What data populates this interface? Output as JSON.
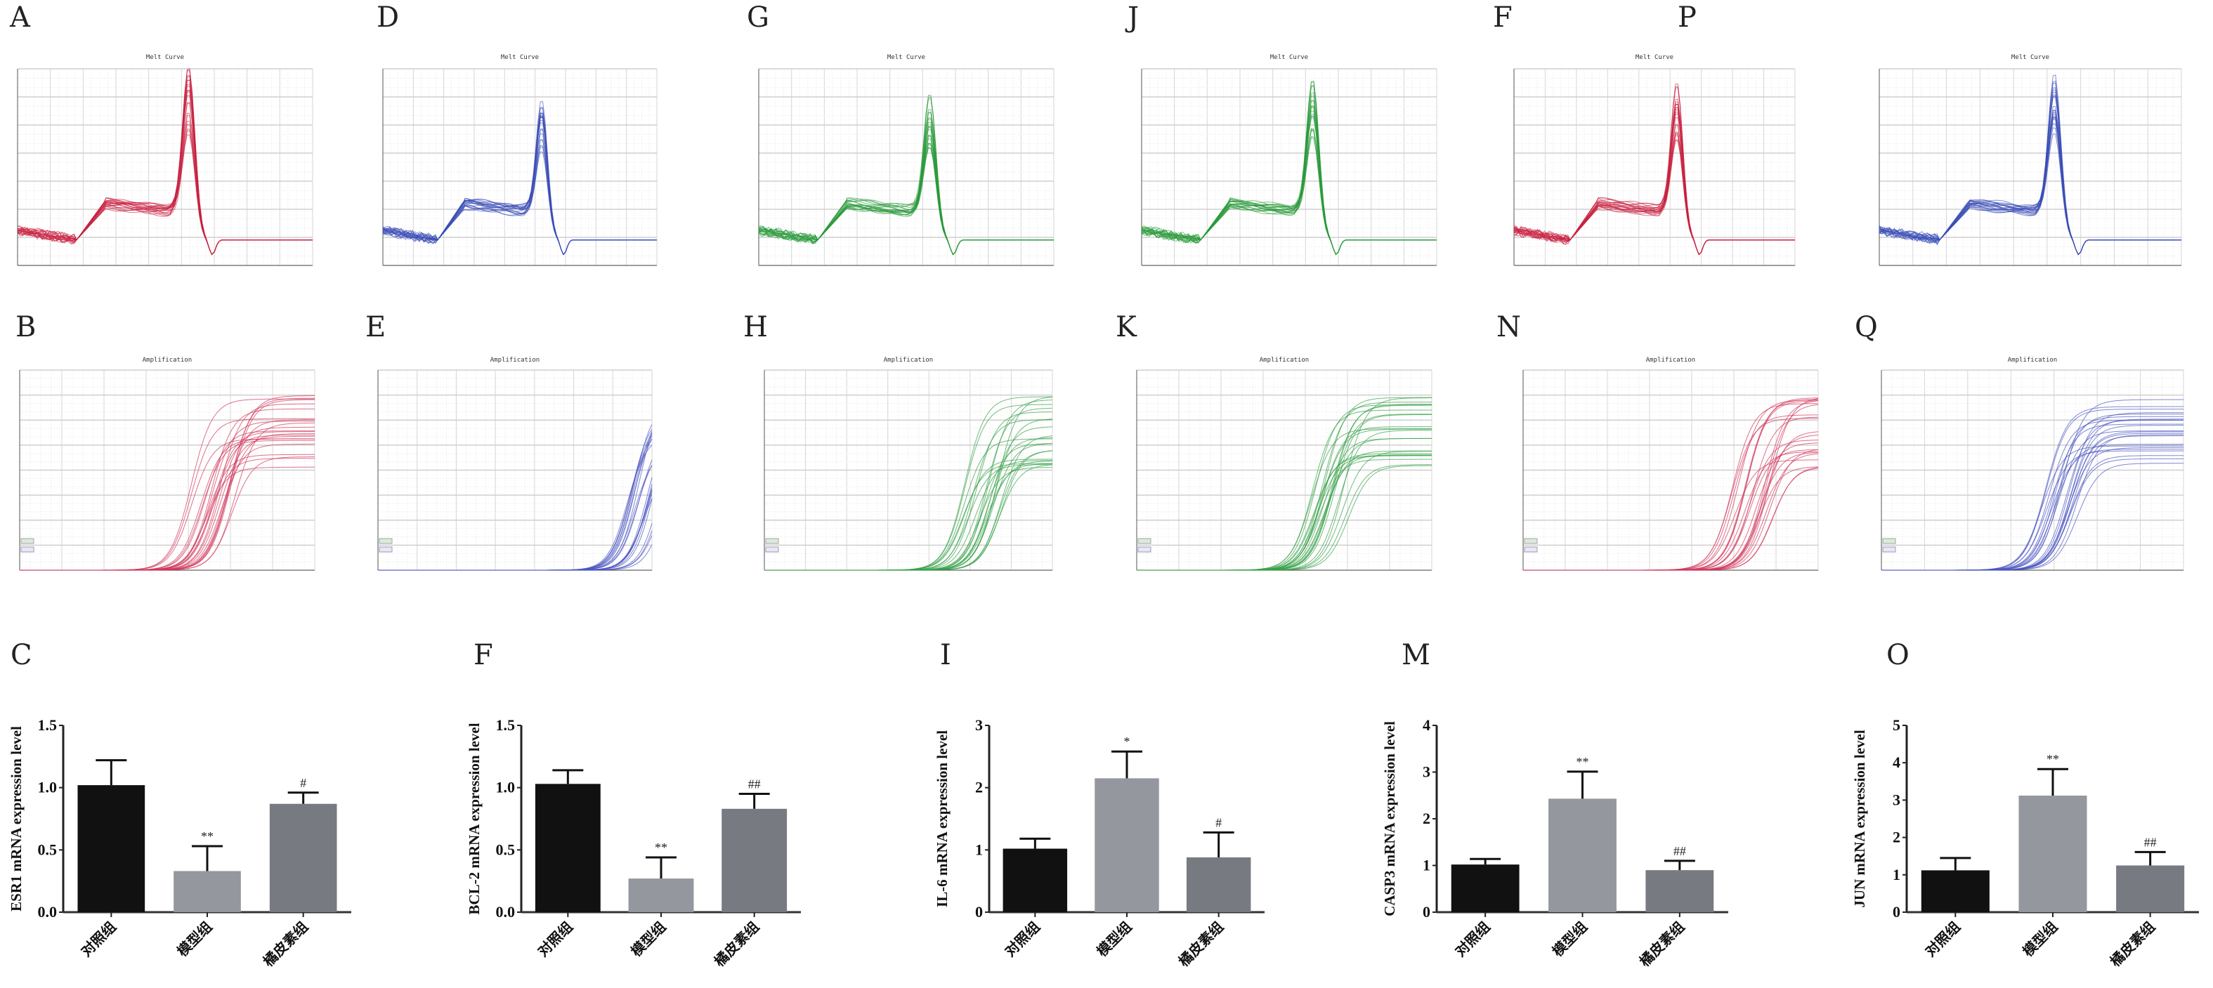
{
  "figure": {
    "row1_letters": [
      "A",
      "D",
      "G",
      "J",
      "F",
      "P"
    ],
    "row2_letters": [
      "B",
      "E",
      "H",
      "K",
      "N",
      "Q"
    ],
    "row3_letters": [
      "C",
      "F",
      "I",
      "M",
      "O"
    ]
  },
  "curve_panels": {
    "melt": [
      {
        "letter": "A",
        "title": "Melt Curve",
        "color": "#c8203f",
        "peak": 0.92
      },
      {
        "letter": "D",
        "title": "Melt Curve",
        "color": "#3a4db5",
        "peak": 0.75
      },
      {
        "letter": "G",
        "title": "Melt Curve",
        "color": "#2a9a3a",
        "peak": 0.8
      },
      {
        "letter": "J",
        "title": "Melt Curve",
        "color": "#2a9a3a",
        "peak": 0.85
      },
      {
        "letter": "F",
        "title": "Melt Curve",
        "color": "#c8203f",
        "peak": 0.85
      },
      {
        "letter": "P",
        "title": "Melt Curve",
        "color": "#3a4db5",
        "peak": 0.9
      }
    ],
    "amplification": [
      {
        "letter": "B",
        "title": "Amplification",
        "color": "#d2345a",
        "onset": 0.5
      },
      {
        "letter": "E",
        "title": "Amplification",
        "color": "#4a55c0",
        "onset": 0.82
      },
      {
        "letter": "H",
        "title": "Amplification",
        "color": "#34a046",
        "onset": 0.6
      },
      {
        "letter": "K",
        "title": "Amplification",
        "color": "#34a046",
        "onset": 0.5
      },
      {
        "letter": "N",
        "title": "Amplification",
        "color": "#d2345a",
        "onset": 0.62
      },
      {
        "letter": "Q",
        "title": "Amplification",
        "color": "#4a55c0",
        "onset": 0.45
      }
    ]
  },
  "chart_data": [
    {
      "type": "bar",
      "panel": "C",
      "categories": [
        "对照组",
        "模型组",
        "橘皮素组"
      ],
      "values": [
        1.02,
        0.33,
        0.87
      ],
      "errors": [
        0.2,
        0.2,
        0.09
      ],
      "significance": [
        "",
        "**",
        "#"
      ],
      "ylabel": "ESR1 mRNA expression level",
      "ylim": [
        0,
        1.5
      ],
      "yticks": [
        "0.0",
        "0.5",
        "1.0",
        "1.5"
      ],
      "ytick_values": [
        0,
        0.5,
        1.0,
        1.5
      ],
      "colors": [
        "#111111",
        "#94979d",
        "#777a80"
      ]
    },
    {
      "type": "bar",
      "panel": "F",
      "categories": [
        "对照组",
        "模型组",
        "橘皮素组"
      ],
      "values": [
        1.03,
        0.27,
        0.83
      ],
      "errors": [
        0.11,
        0.17,
        0.12
      ],
      "significance": [
        "",
        "**",
        "##"
      ],
      "ylabel": "BCL-2 mRNA expression level",
      "ylim": [
        0,
        1.5
      ],
      "yticks": [
        "0.0",
        "0.5",
        "1.0",
        "1.5"
      ],
      "ytick_values": [
        0,
        0.5,
        1.0,
        1.5
      ],
      "colors": [
        "#111111",
        "#94979d",
        "#777a80"
      ]
    },
    {
      "type": "bar",
      "panel": "I",
      "categories": [
        "对照组",
        "模型组",
        "橘皮素组"
      ],
      "values": [
        1.02,
        2.15,
        0.88
      ],
      "errors": [
        0.16,
        0.43,
        0.4
      ],
      "significance": [
        "",
        "*",
        "#"
      ],
      "ylabel": "IL-6 mRNA expression level",
      "ylim": [
        0,
        3
      ],
      "yticks": [
        "0",
        "1",
        "2",
        "3"
      ],
      "ytick_values": [
        0,
        1,
        2,
        3
      ],
      "colors": [
        "#111111",
        "#94979d",
        "#777a80"
      ]
    },
    {
      "type": "bar",
      "panel": "M",
      "categories": [
        "对照组",
        "模型组",
        "橘皮素组"
      ],
      "values": [
        1.02,
        2.43,
        0.9
      ],
      "errors": [
        0.12,
        0.58,
        0.2
      ],
      "significance": [
        "",
        "**",
        "##"
      ],
      "ylabel": "CASP3 mRNA expression level",
      "ylim": [
        0,
        4
      ],
      "yticks": [
        "0",
        "1",
        "2",
        "3",
        "4"
      ],
      "ytick_values": [
        0,
        1,
        2,
        3,
        4
      ],
      "colors": [
        "#111111",
        "#94979d",
        "#777a80"
      ]
    },
    {
      "type": "bar",
      "panel": "O",
      "categories": [
        "对照组",
        "模型组",
        "橘皮素组"
      ],
      "values": [
        1.12,
        3.12,
        1.25
      ],
      "errors": [
        0.33,
        0.71,
        0.36
      ],
      "significance": [
        "",
        "**",
        "##"
      ],
      "ylabel": "JUN mRNA expression level",
      "ylim": [
        0,
        5
      ],
      "yticks": [
        "0",
        "1",
        "2",
        "3",
        "4",
        "5"
      ],
      "ytick_values": [
        0,
        1,
        2,
        3,
        4,
        5
      ],
      "colors": [
        "#111111",
        "#94979d",
        "#777a80"
      ]
    }
  ]
}
